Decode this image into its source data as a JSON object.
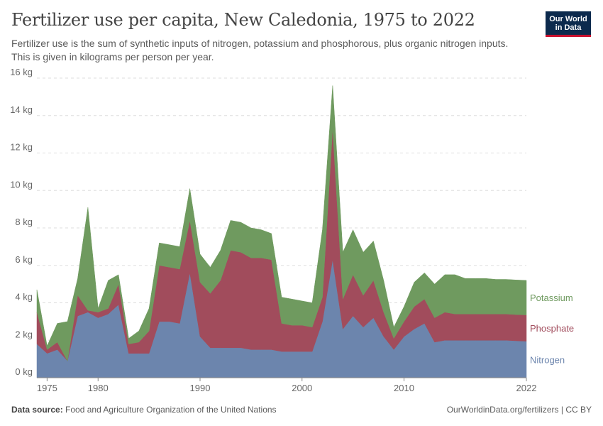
{
  "header": {
    "title": "Fertilizer use per capita, New Caledonia, 1975 to 2022",
    "subtitle": "Fertilizer use is the sum of synthetic inputs of nitrogen, potassium and phosphorous, plus organic nitrogen inputs. This is given in kilograms per person per year.",
    "logo_line1": "Our World",
    "logo_line2": "in Data"
  },
  "footer": {
    "source_label": "Data source:",
    "source_text": "Food and Agriculture Organization of the United Nations",
    "credit": "OurWorldinData.org/fertilizers | CC BY"
  },
  "colors": {
    "nitrogen": "#6c85ad",
    "phosphate": "#a14c5c",
    "potassium": "#6f9a5f",
    "grid": "#dddddd"
  },
  "chart_data": {
    "type": "area",
    "stacked": true,
    "title": "Fertilizer use per capita, New Caledonia, 1975 to 2022",
    "xlabel": "",
    "ylabel": "",
    "xlim": [
      1974,
      2022
    ],
    "ylim": [
      0,
      16
    ],
    "yticks": [
      0,
      2,
      4,
      6,
      8,
      10,
      12,
      14,
      16
    ],
    "ytick_labels": [
      "0 kg",
      "2 kg",
      "4 kg",
      "6 kg",
      "8 kg",
      "10 kg",
      "12 kg",
      "14 kg",
      "16 kg"
    ],
    "xticks": [
      1975,
      1980,
      1990,
      2000,
      2010,
      2022
    ],
    "xtick_labels": [
      "1975",
      "1980",
      "1990",
      "2000",
      "2010",
      "2022"
    ],
    "grid": true,
    "legend_position": "right",
    "x": [
      1974,
      1975,
      1976,
      1977,
      1978,
      1979,
      1980,
      1981,
      1982,
      1983,
      1984,
      1985,
      1986,
      1987,
      1988,
      1989,
      1990,
      1991,
      1992,
      1993,
      1994,
      1995,
      1996,
      1997,
      1998,
      1999,
      2000,
      2001,
      2002,
      2003,
      2004,
      2005,
      2006,
      2007,
      2008,
      2009,
      2010,
      2011,
      2012,
      2013,
      2014,
      2015,
      2016,
      2017,
      2018,
      2019,
      2020,
      2021,
      2022
    ],
    "series": [
      {
        "name": "Nitrogen",
        "values": [
          1.8,
          1.3,
          1.5,
          0.9,
          3.3,
          3.5,
          3.2,
          3.4,
          3.9,
          1.3,
          1.3,
          1.3,
          3.0,
          3.0,
          2.9,
          5.6,
          2.2,
          1.6,
          1.6,
          1.6,
          1.6,
          1.5,
          1.5,
          1.5,
          1.4,
          1.4,
          1.4,
          1.4,
          3.0,
          6.3,
          2.6,
          3.3,
          2.7,
          3.2,
          2.2,
          1.5,
          2.2,
          2.6,
          2.9,
          1.9,
          2.0,
          2.0,
          2.0,
          2.0,
          2.0,
          2.0,
          2.0,
          1.97,
          1.95
        ]
      },
      {
        "name": "Phosphate",
        "values": [
          1.7,
          0.2,
          0.4,
          0.0,
          1.1,
          0.1,
          0.3,
          0.3,
          1.1,
          0.5,
          0.6,
          1.2,
          3.0,
          2.9,
          2.9,
          2.8,
          2.9,
          2.9,
          3.6,
          5.2,
          5.1,
          4.9,
          4.9,
          4.8,
          1.5,
          1.4,
          1.4,
          1.3,
          1.3,
          7.0,
          1.6,
          2.2,
          1.7,
          2.0,
          1.3,
          0.6,
          0.8,
          1.2,
          1.3,
          1.3,
          1.5,
          1.4,
          1.4,
          1.4,
          1.4,
          1.4,
          1.4,
          1.4,
          1.4
        ]
      },
      {
        "name": "Potassium",
        "values": [
          1.2,
          0.2,
          1.0,
          2.1,
          0.9,
          5.5,
          0.2,
          1.5,
          0.5,
          0.3,
          0.6,
          1.2,
          1.2,
          1.2,
          1.2,
          1.7,
          1.5,
          1.4,
          1.6,
          1.6,
          1.6,
          1.6,
          1.5,
          1.4,
          1.4,
          1.4,
          1.3,
          1.3,
          3.6,
          2.3,
          2.5,
          2.4,
          2.3,
          2.1,
          1.7,
          0.6,
          0.8,
          1.3,
          1.4,
          1.8,
          2.0,
          2.1,
          1.9,
          1.9,
          1.9,
          1.85,
          1.85,
          1.85,
          1.85
        ]
      }
    ]
  }
}
